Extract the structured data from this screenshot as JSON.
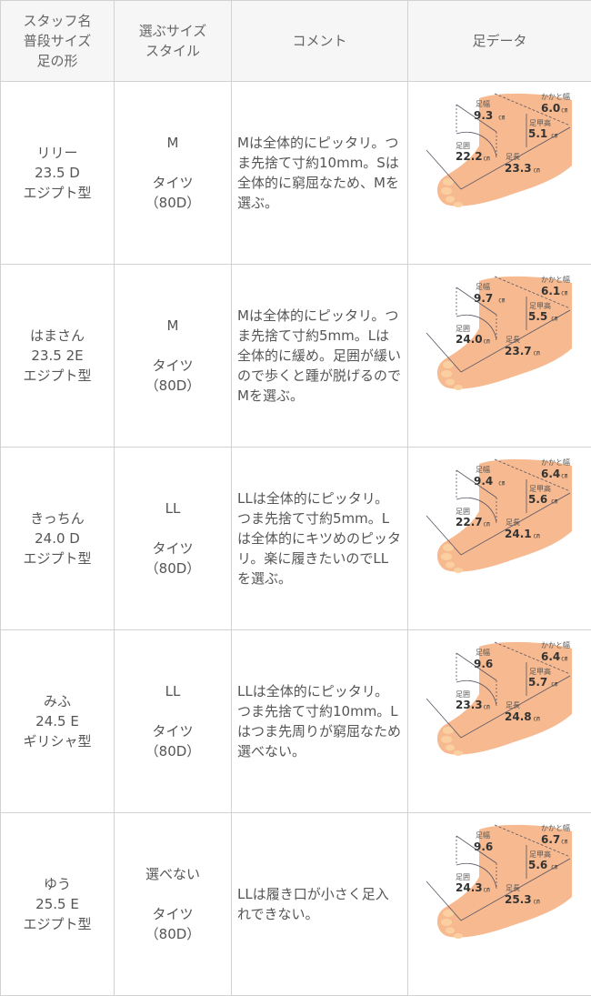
{
  "header": {
    "col1": [
      "スタッフ名",
      "普段サイズ",
      "足の形"
    ],
    "col2": [
      "選ぶサイズ",
      "スタイル"
    ],
    "col3": "コメント",
    "col4": "足データ"
  },
  "labels": {
    "width": "足幅",
    "heel": "かかと幅",
    "instep": "足甲高",
    "girth": "足囲",
    "length": "足長",
    "unit": "㎝"
  },
  "colors": {
    "header_bg": "#f6f6f6",
    "border": "#d2d2d2",
    "foot": "#f7b98f"
  },
  "rows": [
    {
      "name": "リリー",
      "size": "23.5 D",
      "shape": "エジプト型",
      "pick": "M",
      "style": "タイツ",
      "denier": "（80D）",
      "comment": "Mは全体的にピッタリ。つま先捨て寸約10mm。Sは全体的に窮屈なため、Mを選ぶ。",
      "foot": {
        "width": "9.3",
        "heel": "6.0",
        "instep": "5.1",
        "girth": "22.2",
        "length": "23.3",
        "width_unit": "㎝"
      }
    },
    {
      "name": "はまさん",
      "size": "23.5 2E",
      "shape": "エジプト型",
      "pick": "M",
      "style": "タイツ",
      "denier": "（80D）",
      "comment": "Mは全体的にピッタリ。つま先捨て寸約5mm。Lは全体的に緩め。足囲が緩いので歩くと踵が脱げるのでMを選ぶ。",
      "foot": {
        "width": "9.7",
        "heel": "6.1",
        "instep": "5.5",
        "girth": "24.0",
        "length": "23.7",
        "width_unit": "㎝"
      }
    },
    {
      "name": "きっちん",
      "size": "24.0 D",
      "shape": "エジプト型",
      "pick": "LL",
      "style": "タイツ",
      "denier": "（80D）",
      "comment": "LLは全体的にピッタリ。つま先捨て寸約5mm。Lは全体的にキツめのピッタリ。楽に履きたいのでLLを選ぶ。",
      "foot": {
        "width": "9.4",
        "heel": "6.4",
        "instep": "5.6",
        "girth": "22.7",
        "length": "24.1",
        "width_unit": "㎝"
      }
    },
    {
      "name": "みふ",
      "size": "24.5 E",
      "shape": "ギリシャ型",
      "pick": "LL",
      "style": "タイツ",
      "denier": "（80D）",
      "comment": "LLは全体的にピッタリ。つま先捨て寸約10mm。Lはつま先周りが窮屈なため選べない。",
      "foot": {
        "width": "9.6",
        "heel": "6.4",
        "instep": "5.7",
        "girth": "23.3",
        "length": "24.8",
        "width_unit": ""
      }
    },
    {
      "name": "ゆう",
      "size": "25.5 E",
      "shape": "エジプト型",
      "pick": "選べない",
      "style": "タイツ",
      "denier": "（80D）",
      "comment": "LLは履き口が小さく足入れできない。",
      "foot": {
        "width": "9.6",
        "heel": "6.7",
        "instep": "5.6",
        "girth": "24.3",
        "length": "25.3",
        "width_unit": ""
      }
    }
  ]
}
